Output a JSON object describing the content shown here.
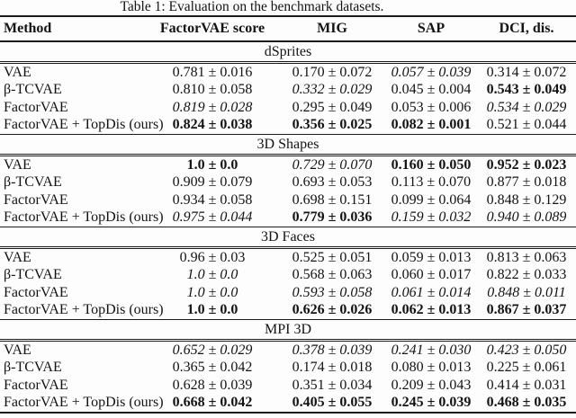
{
  "caption": "Table 1: Evaluation on the benchmark datasets.",
  "columns": [
    "Method",
    "FactorVAE score",
    "MIG",
    "SAP",
    "DCI, dis."
  ],
  "sections": [
    {
      "label": "dSprites",
      "rows": [
        {
          "method": "VAE",
          "values": [
            {
              "text": "0.781 ± 0.016",
              "style": "normal"
            },
            {
              "text": "0.170 ± 0.072",
              "style": "normal"
            },
            {
              "text": "0.057 ± 0.039",
              "style": "italic"
            },
            {
              "text": "0.314 ± 0.072",
              "style": "normal"
            }
          ]
        },
        {
          "method": "β-TCVAE",
          "values": [
            {
              "text": "0.810 ± 0.058",
              "style": "normal"
            },
            {
              "text": "0.332 ± 0.029",
              "style": "italic"
            },
            {
              "text": "0.045 ± 0.004",
              "style": "normal"
            },
            {
              "text": "0.543 ± 0.049",
              "style": "bold"
            }
          ]
        },
        {
          "method": "FactorVAE",
          "values": [
            {
              "text": "0.819 ± 0.028",
              "style": "italic"
            },
            {
              "text": "0.295 ± 0.049",
              "style": "normal"
            },
            {
              "text": "0.053 ± 0.006",
              "style": "normal"
            },
            {
              "text": "0.534 ± 0.029",
              "style": "italic"
            }
          ]
        },
        {
          "method": "FactorVAE + TopDis (ours)",
          "values": [
            {
              "text": "0.824 ± 0.038",
              "style": "bold"
            },
            {
              "text": "0.356 ± 0.025",
              "style": "bold"
            },
            {
              "text": "0.082 ± 0.001",
              "style": "bold"
            },
            {
              "text": "0.521 ± 0.044",
              "style": "normal"
            }
          ]
        }
      ]
    },
    {
      "label": "3D Shapes",
      "rows": [
        {
          "method": "VAE",
          "values": [
            {
              "text": "1.0 ± 0.0",
              "style": "bold"
            },
            {
              "text": "0.729 ± 0.070",
              "style": "italic"
            },
            {
              "text": "0.160 ± 0.050",
              "style": "bold"
            },
            {
              "text": "0.952 ± 0.023",
              "style": "bold"
            }
          ]
        },
        {
          "method": "β-TCVAE",
          "values": [
            {
              "text": "0.909 ± 0.079",
              "style": "normal"
            },
            {
              "text": "0.693 ± 0.053",
              "style": "normal"
            },
            {
              "text": "0.113 ± 0.070",
              "style": "normal"
            },
            {
              "text": "0.877 ± 0.018",
              "style": "normal"
            }
          ]
        },
        {
          "method": "FactorVAE",
          "values": [
            {
              "text": "0.934 ± 0.058",
              "style": "normal"
            },
            {
              "text": "0.698 ± 0.151",
              "style": "normal"
            },
            {
              "text": "0.099 ± 0.064",
              "style": "normal"
            },
            {
              "text": "0.848 ± 0.129",
              "style": "normal"
            }
          ]
        },
        {
          "method": "FactorVAE + TopDis (ours)",
          "values": [
            {
              "text": "0.975 ± 0.044",
              "style": "italic"
            },
            {
              "text": "0.779 ± 0.036",
              "style": "bold"
            },
            {
              "text": "0.159 ± 0.032",
              "style": "italic"
            },
            {
              "text": "0.940 ± 0.089",
              "style": "italic"
            }
          ]
        }
      ]
    },
    {
      "label": "3D Faces",
      "rows": [
        {
          "method": "VAE",
          "values": [
            {
              "text": "0.96 ± 0.03",
              "style": "normal"
            },
            {
              "text": "0.525 ± 0.051",
              "style": "normal"
            },
            {
              "text": "0.059 ± 0.013",
              "style": "normal"
            },
            {
              "text": "0.813 ± 0.063",
              "style": "normal"
            }
          ]
        },
        {
          "method": "β-TCVAE",
          "values": [
            {
              "text": "1.0 ± 0.0",
              "style": "italic"
            },
            {
              "text": "0.568 ± 0.063",
              "style": "normal"
            },
            {
              "text": "0.060 ± 0.017",
              "style": "normal"
            },
            {
              "text": "0.822 ± 0.033",
              "style": "normal"
            }
          ]
        },
        {
          "method": "FactorVAE",
          "values": [
            {
              "text": "1.0 ± 0.0",
              "style": "italic"
            },
            {
              "text": "0.593 ± 0.058",
              "style": "italic"
            },
            {
              "text": "0.061 ± 0.014",
              "style": "italic"
            },
            {
              "text": "0.848 ± 0.011",
              "style": "italic"
            }
          ]
        },
        {
          "method": "FactorVAE + TopDis (ours)",
          "values": [
            {
              "text": "1.0 ± 0.0",
              "style": "bold"
            },
            {
              "text": "0.626 ± 0.026",
              "style": "bold"
            },
            {
              "text": "0.062 ± 0.013",
              "style": "bold"
            },
            {
              "text": "0.867 ± 0.037",
              "style": "bold"
            }
          ]
        }
      ]
    },
    {
      "label": "MPI 3D",
      "rows": [
        {
          "method": "VAE",
          "values": [
            {
              "text": "0.652 ± 0.029",
              "style": "italic"
            },
            {
              "text": "0.378 ± 0.039",
              "style": "italic"
            },
            {
              "text": "0.241 ± 0.030",
              "style": "italic"
            },
            {
              "text": "0.423 ± 0.050",
              "style": "italic"
            }
          ]
        },
        {
          "method": "β-TCVAE",
          "values": [
            {
              "text": "0.365 ± 0.042",
              "style": "normal"
            },
            {
              "text": "0.174 ± 0.018",
              "style": "normal"
            },
            {
              "text": "0.080 ± 0.013",
              "style": "normal"
            },
            {
              "text": "0.225 ± 0.061",
              "style": "normal"
            }
          ]
        },
        {
          "method": "FactorVAE",
          "values": [
            {
              "text": "0.628 ± 0.039",
              "style": "normal"
            },
            {
              "text": "0.351 ± 0.034",
              "style": "normal"
            },
            {
              "text": "0.209 ± 0.043",
              "style": "normal"
            },
            {
              "text": "0.414 ± 0.031",
              "style": "normal"
            }
          ]
        },
        {
          "method": "FactorVAE + TopDis (ours)",
          "values": [
            {
              "text": "0.668 ± 0.042",
              "style": "bold"
            },
            {
              "text": "0.405 ± 0.055",
              "style": "bold"
            },
            {
              "text": "0.245 ± 0.039",
              "style": "bold"
            },
            {
              "text": "0.468 ± 0.035",
              "style": "bold"
            }
          ]
        }
      ]
    }
  ]
}
